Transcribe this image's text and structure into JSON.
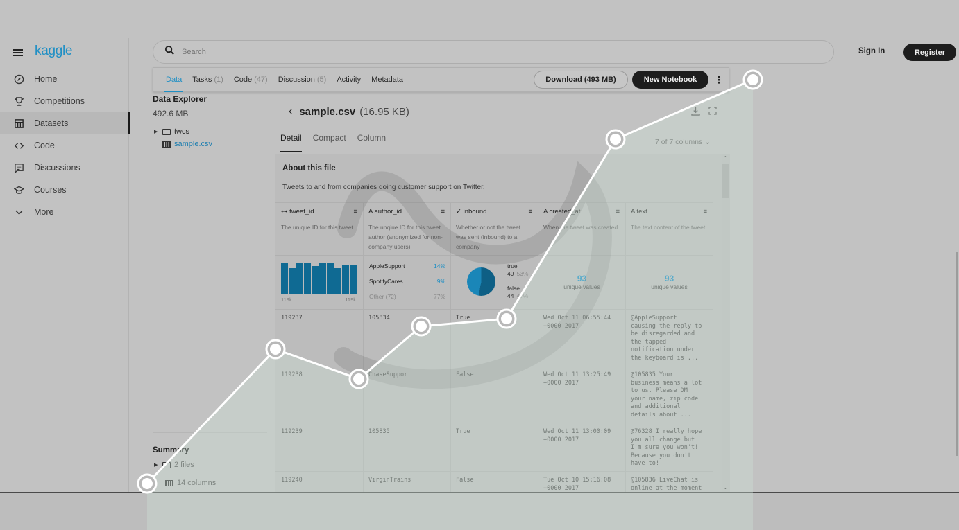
{
  "sidebar": {
    "logo": "kaggle",
    "items": [
      {
        "label": "Home",
        "icon": "compass-icon"
      },
      {
        "label": "Competitions",
        "icon": "trophy-icon"
      },
      {
        "label": "Datasets",
        "icon": "table-icon",
        "active": true
      },
      {
        "label": "Code",
        "icon": "code-icon"
      },
      {
        "label": "Discussions",
        "icon": "comment-icon"
      },
      {
        "label": "Courses",
        "icon": "school-icon"
      },
      {
        "label": "More",
        "icon": "chevron-down-icon"
      }
    ]
  },
  "header": {
    "search_placeholder": "Search",
    "sign_in": "Sign In",
    "register": "Register"
  },
  "tabs": {
    "items": [
      {
        "label": "Data",
        "count": ""
      },
      {
        "label": "Tasks",
        "count": "(1)"
      },
      {
        "label": "Code",
        "count": "(47)"
      },
      {
        "label": "Discussion",
        "count": "(5)"
      },
      {
        "label": "Activity",
        "count": ""
      },
      {
        "label": "Metadata",
        "count": ""
      }
    ],
    "download": "Download (493 MB)",
    "new_notebook": "New Notebook"
  },
  "explorer": {
    "title": "Data Explorer",
    "size": "492.6 MB",
    "tree": [
      {
        "label": "twcs",
        "type": "folder"
      },
      {
        "label": "sample.csv",
        "type": "table"
      }
    ],
    "summary_title": "Summary",
    "summary": [
      {
        "label": "2 files",
        "type": "folder"
      },
      {
        "label": "14 columns",
        "type": "table"
      }
    ]
  },
  "file": {
    "name": "sample.csv",
    "size": "(16.95 KB)",
    "subtabs": [
      "Detail",
      "Compact",
      "Column"
    ],
    "columns_selector": "7 of 7 columns",
    "about_title": "About this file",
    "about_text": "Tweets to and from companies doing customer support on Twitter.",
    "columns": [
      {
        "name": "tweet_id",
        "type_icon": "id-icon",
        "desc": "The unique ID for this tweet"
      },
      {
        "name": "author_id",
        "type_icon": "string-icon",
        "desc": "The unqiue ID for this tweet author (anonymized for non-company users)"
      },
      {
        "name": "inbound",
        "type_icon": "boolean-icon",
        "desc": "Whether or not the tweet was sent (inbound) to a company"
      },
      {
        "name": "created_at",
        "type_icon": "string-icon",
        "desc": "When the tweet was created"
      },
      {
        "name": "text",
        "type_icon": "string-icon",
        "desc": "The text content of the tweet"
      }
    ],
    "stats": {
      "tweet_id": {
        "min": "119k",
        "max": "119k",
        "bars": [
          90,
          75,
          90,
          90,
          80,
          90,
          90,
          75,
          85,
          85
        ]
      },
      "author_id": [
        {
          "label": "AppleSupport",
          "pct": "14%"
        },
        {
          "label": "SpotifyCares",
          "pct": "9%"
        },
        {
          "label": "Other (72)",
          "pct": "77%"
        }
      ],
      "inbound": {
        "true_label": "true",
        "true_count": "49",
        "true_pct": "53%",
        "false_label": "false",
        "false_count": "44",
        "false_pct": "47%"
      },
      "created_at": {
        "unique": "93",
        "label": "unique values"
      },
      "text": {
        "unique": "93",
        "label": "unique values"
      }
    },
    "rows": [
      {
        "tweet_id": "119237",
        "author_id": "105834",
        "inbound": "True",
        "created_at": "Wed Oct 11 06:55:44\n+0000 2017",
        "text": "@AppleSupport\ncausing the reply to\nbe disregarded and\nthe tapped\nnotification under\nthe keyboard is ..."
      },
      {
        "tweet_id": "119238",
        "author_id": "ChaseSupport",
        "inbound": "False",
        "created_at": "Wed Oct 11 13:25:49\n+0000 2017",
        "text": "@105835 Your\nbusiness means a lot\nto us. Please DM\nyour name, zip code\nand additional\ndetails about ..."
      },
      {
        "tweet_id": "119239",
        "author_id": "105835",
        "inbound": "True",
        "created_at": "Wed Oct 11 13:00:09\n+0000 2017",
        "text": "@76328 I really hope\nyou all change but\nI'm sure you won't!\nBecause you don't\nhave to!"
      },
      {
        "tweet_id": "119240",
        "author_id": "VirginTrains",
        "inbound": "False",
        "created_at": "Tue Oct 10 15:16:08\n+0000 2017",
        "text": "@105836 LiveChat is\nonline at the moment"
      }
    ]
  },
  "overlay": {
    "line_color": "#ffffff",
    "fill_color": "#cfe3d6",
    "points": [
      [
        212,
        698
      ],
      [
        397,
        504
      ],
      [
        517,
        547
      ],
      [
        607,
        471
      ],
      [
        730,
        460
      ],
      [
        887,
        201
      ],
      [
        1085,
        115
      ]
    ]
  }
}
